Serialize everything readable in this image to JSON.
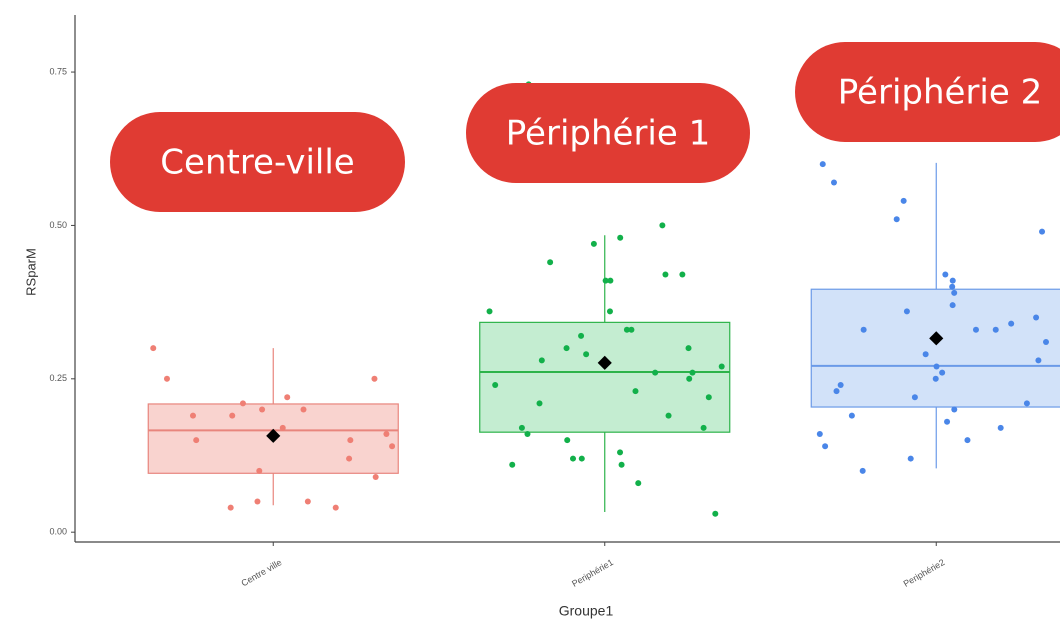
{
  "chart_data": {
    "type": "box",
    "x_label": "Groupe1",
    "y_label": "RSparM",
    "categories": [
      "Centre ville",
      "Periphérie1",
      "Periphérie2"
    ],
    "colors": [
      "#e8857d",
      "#2db34a",
      "#6b9ae8"
    ],
    "fills": [
      "#f9d3cf",
      "#c4edd1",
      "#d2e2f9"
    ],
    "point_colors": [
      "#ef7f74",
      "#12b04a",
      "#4a86e8"
    ],
    "boxes": [
      {
        "low": 0.044,
        "q1": 0.096,
        "median": 0.166,
        "q3": 0.209,
        "high": 0.3,
        "mean": 0.157,
        "points": [
          0.3,
          0.25,
          0.25,
          0.22,
          0.21,
          0.2,
          0.2,
          0.19,
          0.19,
          0.17,
          0.16,
          0.15,
          0.15,
          0.14,
          0.12,
          0.1,
          0.09,
          0.05,
          0.05,
          0.04,
          0.04
        ]
      },
      {
        "low": 0.033,
        "q1": 0.163,
        "median": 0.261,
        "q3": 0.342,
        "high": 0.484,
        "mean": 0.276,
        "points": [
          0.73,
          0.5,
          0.48,
          0.47,
          0.44,
          0.42,
          0.42,
          0.41,
          0.41,
          0.36,
          0.36,
          0.33,
          0.33,
          0.32,
          0.3,
          0.3,
          0.29,
          0.28,
          0.27,
          0.26,
          0.26,
          0.25,
          0.24,
          0.23,
          0.22,
          0.21,
          0.19,
          0.17,
          0.17,
          0.16,
          0.15,
          0.13,
          0.12,
          0.12,
          0.11,
          0.11,
          0.08,
          0.03
        ]
      },
      {
        "low": 0.104,
        "q1": 0.204,
        "median": 0.271,
        "q3": 0.396,
        "high": 0.602,
        "mean": 0.316,
        "points": [
          0.6,
          0.57,
          0.54,
          0.51,
          0.49,
          0.42,
          0.41,
          0.4,
          0.39,
          0.37,
          0.36,
          0.35,
          0.34,
          0.33,
          0.33,
          0.33,
          0.31,
          0.29,
          0.28,
          0.27,
          0.26,
          0.25,
          0.24,
          0.23,
          0.22,
          0.21,
          0.2,
          0.19,
          0.18,
          0.17,
          0.16,
          0.15,
          0.14,
          0.12,
          0.1
        ]
      }
    ],
    "ylim": [
      -0.016,
      0.843
    ],
    "yticks": [
      {
        "value": 0,
        "label": "0.00"
      },
      {
        "value": 0.25,
        "label": "0.25"
      },
      {
        "value": 0.5,
        "label": "0.50"
      },
      {
        "value": 0.75,
        "label": "0.75"
      }
    ],
    "annotations": [
      {
        "text": "Centre-ville",
        "color": "#e03b33"
      },
      {
        "text": "Périphérie 1",
        "color": "#e03b33"
      },
      {
        "text": "Périphérie 2",
        "color": "#e03b33"
      }
    ]
  }
}
